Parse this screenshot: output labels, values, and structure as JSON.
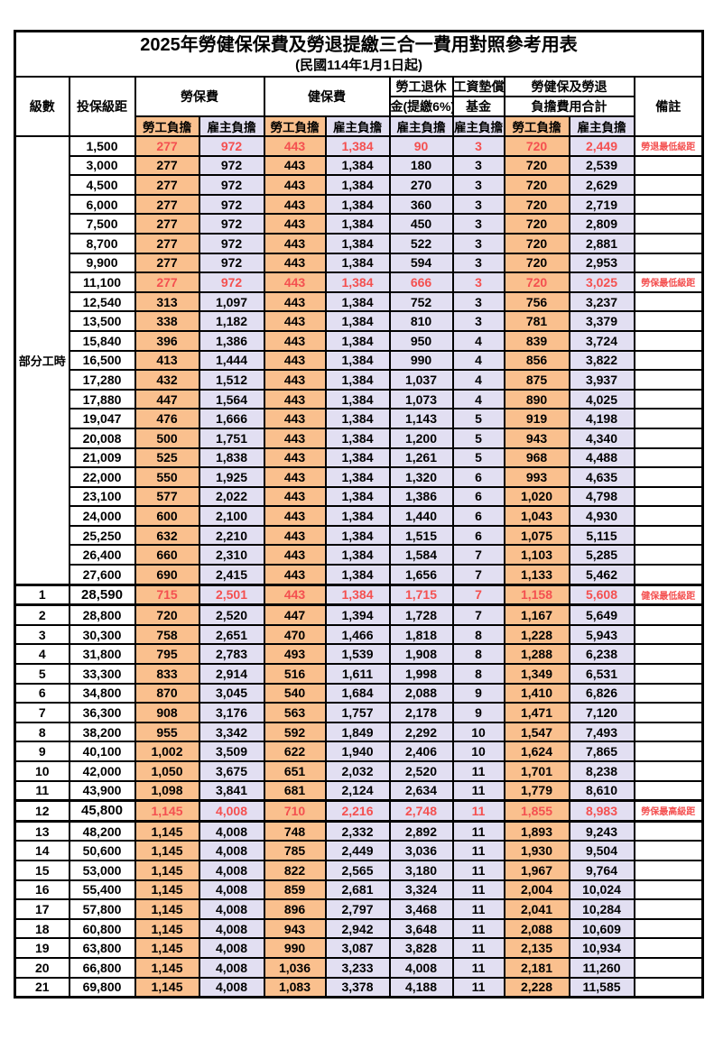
{
  "title": "2025年勞健保保費及勞退提繳三合一費用對照參考用表",
  "subtitle": "(民國114年1月1日起)",
  "colors": {
    "employee_bg": "#FAC08E",
    "employer_bg": "#E2DFF2",
    "highlight_red": "#F45050"
  },
  "header": {
    "level": "級數",
    "bracket": "投保級距",
    "labor_fee": "勞保費",
    "health_fee": "健保費",
    "pension_line1": "勞工退休",
    "pension_line2": "金(提繳6%)",
    "wage_fund_line1": "工資墊償",
    "wage_fund_line2": "基金",
    "total_line1": "勞健保及勞退",
    "total_line2": "負擔費用合計",
    "employee": "勞工負擔",
    "employer": "雇主負擔",
    "note": "備註"
  },
  "part_time_label": "部分工時",
  "part_time_rowspan": 23,
  "rows": [
    {
      "lv": "",
      "bracket": "1,500",
      "cells": [
        "277",
        "972",
        "443",
        "1,384",
        "90",
        "3",
        "720",
        "2,449"
      ],
      "note": "勞退最低級距",
      "red": true,
      "bold": false,
      "thick": false
    },
    {
      "lv": "",
      "bracket": "3,000",
      "cells": [
        "277",
        "972",
        "443",
        "1,384",
        "180",
        "3",
        "720",
        "2,539"
      ],
      "note": "",
      "red": false,
      "bold": false,
      "thick": false
    },
    {
      "lv": "",
      "bracket": "4,500",
      "cells": [
        "277",
        "972",
        "443",
        "1,384",
        "270",
        "3",
        "720",
        "2,629"
      ],
      "note": "",
      "red": false,
      "bold": false,
      "thick": false
    },
    {
      "lv": "",
      "bracket": "6,000",
      "cells": [
        "277",
        "972",
        "443",
        "1,384",
        "360",
        "3",
        "720",
        "2,719"
      ],
      "note": "",
      "red": false,
      "bold": false,
      "thick": false
    },
    {
      "lv": "",
      "bracket": "7,500",
      "cells": [
        "277",
        "972",
        "443",
        "1,384",
        "450",
        "3",
        "720",
        "2,809"
      ],
      "note": "",
      "red": false,
      "bold": false,
      "thick": false
    },
    {
      "lv": "",
      "bracket": "8,700",
      "cells": [
        "277",
        "972",
        "443",
        "1,384",
        "522",
        "3",
        "720",
        "2,881"
      ],
      "note": "",
      "red": false,
      "bold": false,
      "thick": false
    },
    {
      "lv": "",
      "bracket": "9,900",
      "cells": [
        "277",
        "972",
        "443",
        "1,384",
        "594",
        "3",
        "720",
        "2,953"
      ],
      "note": "",
      "red": false,
      "bold": false,
      "thick": false
    },
    {
      "lv": "",
      "bracket": "11,100",
      "cells": [
        "277",
        "972",
        "443",
        "1,384",
        "666",
        "3",
        "720",
        "3,025"
      ],
      "note": "勞保最低級距",
      "red": true,
      "bold": false,
      "thick": false
    },
    {
      "lv": "",
      "bracket": "12,540",
      "cells": [
        "313",
        "1,097",
        "443",
        "1,384",
        "752",
        "3",
        "756",
        "3,237"
      ],
      "note": "",
      "red": false,
      "bold": false,
      "thick": false
    },
    {
      "lv": "",
      "bracket": "13,500",
      "cells": [
        "338",
        "1,182",
        "443",
        "1,384",
        "810",
        "3",
        "781",
        "3,379"
      ],
      "note": "",
      "red": false,
      "bold": false,
      "thick": false
    },
    {
      "lv": "",
      "bracket": "15,840",
      "cells": [
        "396",
        "1,386",
        "443",
        "1,384",
        "950",
        "4",
        "839",
        "3,724"
      ],
      "note": "",
      "red": false,
      "bold": false,
      "thick": false
    },
    {
      "lv": "",
      "bracket": "16,500",
      "cells": [
        "413",
        "1,444",
        "443",
        "1,384",
        "990",
        "4",
        "856",
        "3,822"
      ],
      "note": "",
      "red": false,
      "bold": false,
      "thick": false
    },
    {
      "lv": "",
      "bracket": "17,280",
      "cells": [
        "432",
        "1,512",
        "443",
        "1,384",
        "1,037",
        "4",
        "875",
        "3,937"
      ],
      "note": "",
      "red": false,
      "bold": false,
      "thick": false
    },
    {
      "lv": "",
      "bracket": "17,880",
      "cells": [
        "447",
        "1,564",
        "443",
        "1,384",
        "1,073",
        "4",
        "890",
        "4,025"
      ],
      "note": "",
      "red": false,
      "bold": false,
      "thick": false
    },
    {
      "lv": "",
      "bracket": "19,047",
      "cells": [
        "476",
        "1,666",
        "443",
        "1,384",
        "1,143",
        "5",
        "919",
        "4,198"
      ],
      "note": "",
      "red": false,
      "bold": false,
      "thick": false
    },
    {
      "lv": "",
      "bracket": "20,008",
      "cells": [
        "500",
        "1,751",
        "443",
        "1,384",
        "1,200",
        "5",
        "943",
        "4,340"
      ],
      "note": "",
      "red": false,
      "bold": false,
      "thick": false
    },
    {
      "lv": "",
      "bracket": "21,009",
      "cells": [
        "525",
        "1,838",
        "443",
        "1,384",
        "1,261",
        "5",
        "968",
        "4,488"
      ],
      "note": "",
      "red": false,
      "bold": false,
      "thick": false
    },
    {
      "lv": "",
      "bracket": "22,000",
      "cells": [
        "550",
        "1,925",
        "443",
        "1,384",
        "1,320",
        "6",
        "993",
        "4,635"
      ],
      "note": "",
      "red": false,
      "bold": false,
      "thick": false
    },
    {
      "lv": "",
      "bracket": "23,100",
      "cells": [
        "577",
        "2,022",
        "443",
        "1,384",
        "1,386",
        "6",
        "1,020",
        "4,798"
      ],
      "note": "",
      "red": false,
      "bold": false,
      "thick": false
    },
    {
      "lv": "",
      "bracket": "24,000",
      "cells": [
        "600",
        "2,100",
        "443",
        "1,384",
        "1,440",
        "6",
        "1,043",
        "4,930"
      ],
      "note": "",
      "red": false,
      "bold": false,
      "thick": false
    },
    {
      "lv": "",
      "bracket": "25,250",
      "cells": [
        "632",
        "2,210",
        "443",
        "1,384",
        "1,515",
        "6",
        "1,075",
        "5,115"
      ],
      "note": "",
      "red": false,
      "bold": false,
      "thick": false
    },
    {
      "lv": "",
      "bracket": "26,400",
      "cells": [
        "660",
        "2,310",
        "443",
        "1,384",
        "1,584",
        "7",
        "1,103",
        "5,285"
      ],
      "note": "",
      "red": false,
      "bold": false,
      "thick": false
    },
    {
      "lv": "",
      "bracket": "27,600",
      "cells": [
        "690",
        "2,415",
        "443",
        "1,384",
        "1,656",
        "7",
        "1,133",
        "5,462"
      ],
      "note": "",
      "red": false,
      "bold": false,
      "thick": false
    },
    {
      "lv": "1",
      "bracket": "28,590",
      "cells": [
        "715",
        "2,501",
        "443",
        "1,384",
        "1,715",
        "7",
        "1,158",
        "5,608"
      ],
      "note": "健保最低級距",
      "red": true,
      "bold": true,
      "thick": true
    },
    {
      "lv": "2",
      "bracket": "28,800",
      "cells": [
        "720",
        "2,520",
        "447",
        "1,394",
        "1,728",
        "7",
        "1,167",
        "5,649"
      ],
      "note": "",
      "red": false,
      "bold": false,
      "thick": false
    },
    {
      "lv": "3",
      "bracket": "30,300",
      "cells": [
        "758",
        "2,651",
        "470",
        "1,466",
        "1,818",
        "8",
        "1,228",
        "5,943"
      ],
      "note": "",
      "red": false,
      "bold": false,
      "thick": false
    },
    {
      "lv": "4",
      "bracket": "31,800",
      "cells": [
        "795",
        "2,783",
        "493",
        "1,539",
        "1,908",
        "8",
        "1,288",
        "6,238"
      ],
      "note": "",
      "red": false,
      "bold": false,
      "thick": false
    },
    {
      "lv": "5",
      "bracket": "33,300",
      "cells": [
        "833",
        "2,914",
        "516",
        "1,611",
        "1,998",
        "8",
        "1,349",
        "6,531"
      ],
      "note": "",
      "red": false,
      "bold": false,
      "thick": false
    },
    {
      "lv": "6",
      "bracket": "34,800",
      "cells": [
        "870",
        "3,045",
        "540",
        "1,684",
        "2,088",
        "9",
        "1,410",
        "6,826"
      ],
      "note": "",
      "red": false,
      "bold": false,
      "thick": false
    },
    {
      "lv": "7",
      "bracket": "36,300",
      "cells": [
        "908",
        "3,176",
        "563",
        "1,757",
        "2,178",
        "9",
        "1,471",
        "7,120"
      ],
      "note": "",
      "red": false,
      "bold": false,
      "thick": false
    },
    {
      "lv": "8",
      "bracket": "38,200",
      "cells": [
        "955",
        "3,342",
        "592",
        "1,849",
        "2,292",
        "10",
        "1,547",
        "7,493"
      ],
      "note": "",
      "red": false,
      "bold": false,
      "thick": false
    },
    {
      "lv": "9",
      "bracket": "40,100",
      "cells": [
        "1,002",
        "3,509",
        "622",
        "1,940",
        "2,406",
        "10",
        "1,624",
        "7,865"
      ],
      "note": "",
      "red": false,
      "bold": false,
      "thick": false
    },
    {
      "lv": "10",
      "bracket": "42,000",
      "cells": [
        "1,050",
        "3,675",
        "651",
        "2,032",
        "2,520",
        "11",
        "1,701",
        "8,238"
      ],
      "note": "",
      "red": false,
      "bold": false,
      "thick": false
    },
    {
      "lv": "11",
      "bracket": "43,900",
      "cells": [
        "1,098",
        "3,841",
        "681",
        "2,124",
        "2,634",
        "11",
        "1,779",
        "8,610"
      ],
      "note": "",
      "red": false,
      "bold": false,
      "thick": false
    },
    {
      "lv": "12",
      "bracket": "45,800",
      "cells": [
        "1,145",
        "4,008",
        "710",
        "2,216",
        "2,748",
        "11",
        "1,855",
        "8,983"
      ],
      "note": "勞保最高級距",
      "red": true,
      "bold": true,
      "thick": true
    },
    {
      "lv": "13",
      "bracket": "48,200",
      "cells": [
        "1,145",
        "4,008",
        "748",
        "2,332",
        "2,892",
        "11",
        "1,893",
        "9,243"
      ],
      "note": "",
      "red": false,
      "bold": false,
      "thick": false
    },
    {
      "lv": "14",
      "bracket": "50,600",
      "cells": [
        "1,145",
        "4,008",
        "785",
        "2,449",
        "3,036",
        "11",
        "1,930",
        "9,504"
      ],
      "note": "",
      "red": false,
      "bold": false,
      "thick": false
    },
    {
      "lv": "15",
      "bracket": "53,000",
      "cells": [
        "1,145",
        "4,008",
        "822",
        "2,565",
        "3,180",
        "11",
        "1,967",
        "9,764"
      ],
      "note": "",
      "red": false,
      "bold": false,
      "thick": false
    },
    {
      "lv": "16",
      "bracket": "55,400",
      "cells": [
        "1,145",
        "4,008",
        "859",
        "2,681",
        "3,324",
        "11",
        "2,004",
        "10,024"
      ],
      "note": "",
      "red": false,
      "bold": false,
      "thick": false
    },
    {
      "lv": "17",
      "bracket": "57,800",
      "cells": [
        "1,145",
        "4,008",
        "896",
        "2,797",
        "3,468",
        "11",
        "2,041",
        "10,284"
      ],
      "note": "",
      "red": false,
      "bold": false,
      "thick": false
    },
    {
      "lv": "18",
      "bracket": "60,800",
      "cells": [
        "1,145",
        "4,008",
        "943",
        "2,942",
        "3,648",
        "11",
        "2,088",
        "10,609"
      ],
      "note": "",
      "red": false,
      "bold": false,
      "thick": false
    },
    {
      "lv": "19",
      "bracket": "63,800",
      "cells": [
        "1,145",
        "4,008",
        "990",
        "3,087",
        "3,828",
        "11",
        "2,135",
        "10,934"
      ],
      "note": "",
      "red": false,
      "bold": false,
      "thick": false
    },
    {
      "lv": "20",
      "bracket": "66,800",
      "cells": [
        "1,145",
        "4,008",
        "1,036",
        "3,233",
        "4,008",
        "11",
        "2,181",
        "11,260"
      ],
      "note": "",
      "red": false,
      "bold": false,
      "thick": false
    },
    {
      "lv": "21",
      "bracket": "69,800",
      "cells": [
        "1,145",
        "4,008",
        "1,083",
        "3,378",
        "4,188",
        "11",
        "2,228",
        "11,585"
      ],
      "note": "",
      "red": false,
      "bold": false,
      "thick": false
    }
  ]
}
